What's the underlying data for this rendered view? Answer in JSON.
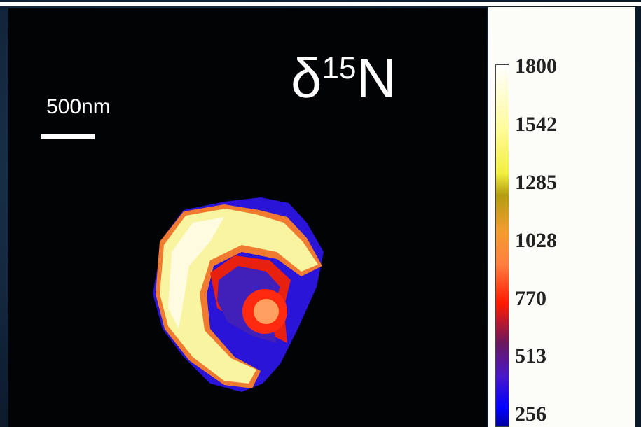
{
  "image": {
    "label": {
      "symbol": "δ",
      "isotope": "15",
      "element": "N"
    },
    "scale_bar": "500nm",
    "colorbar": {
      "ticks": [
        1800,
        1542,
        1285,
        1028,
        770,
        513,
        256
      ]
    }
  }
}
